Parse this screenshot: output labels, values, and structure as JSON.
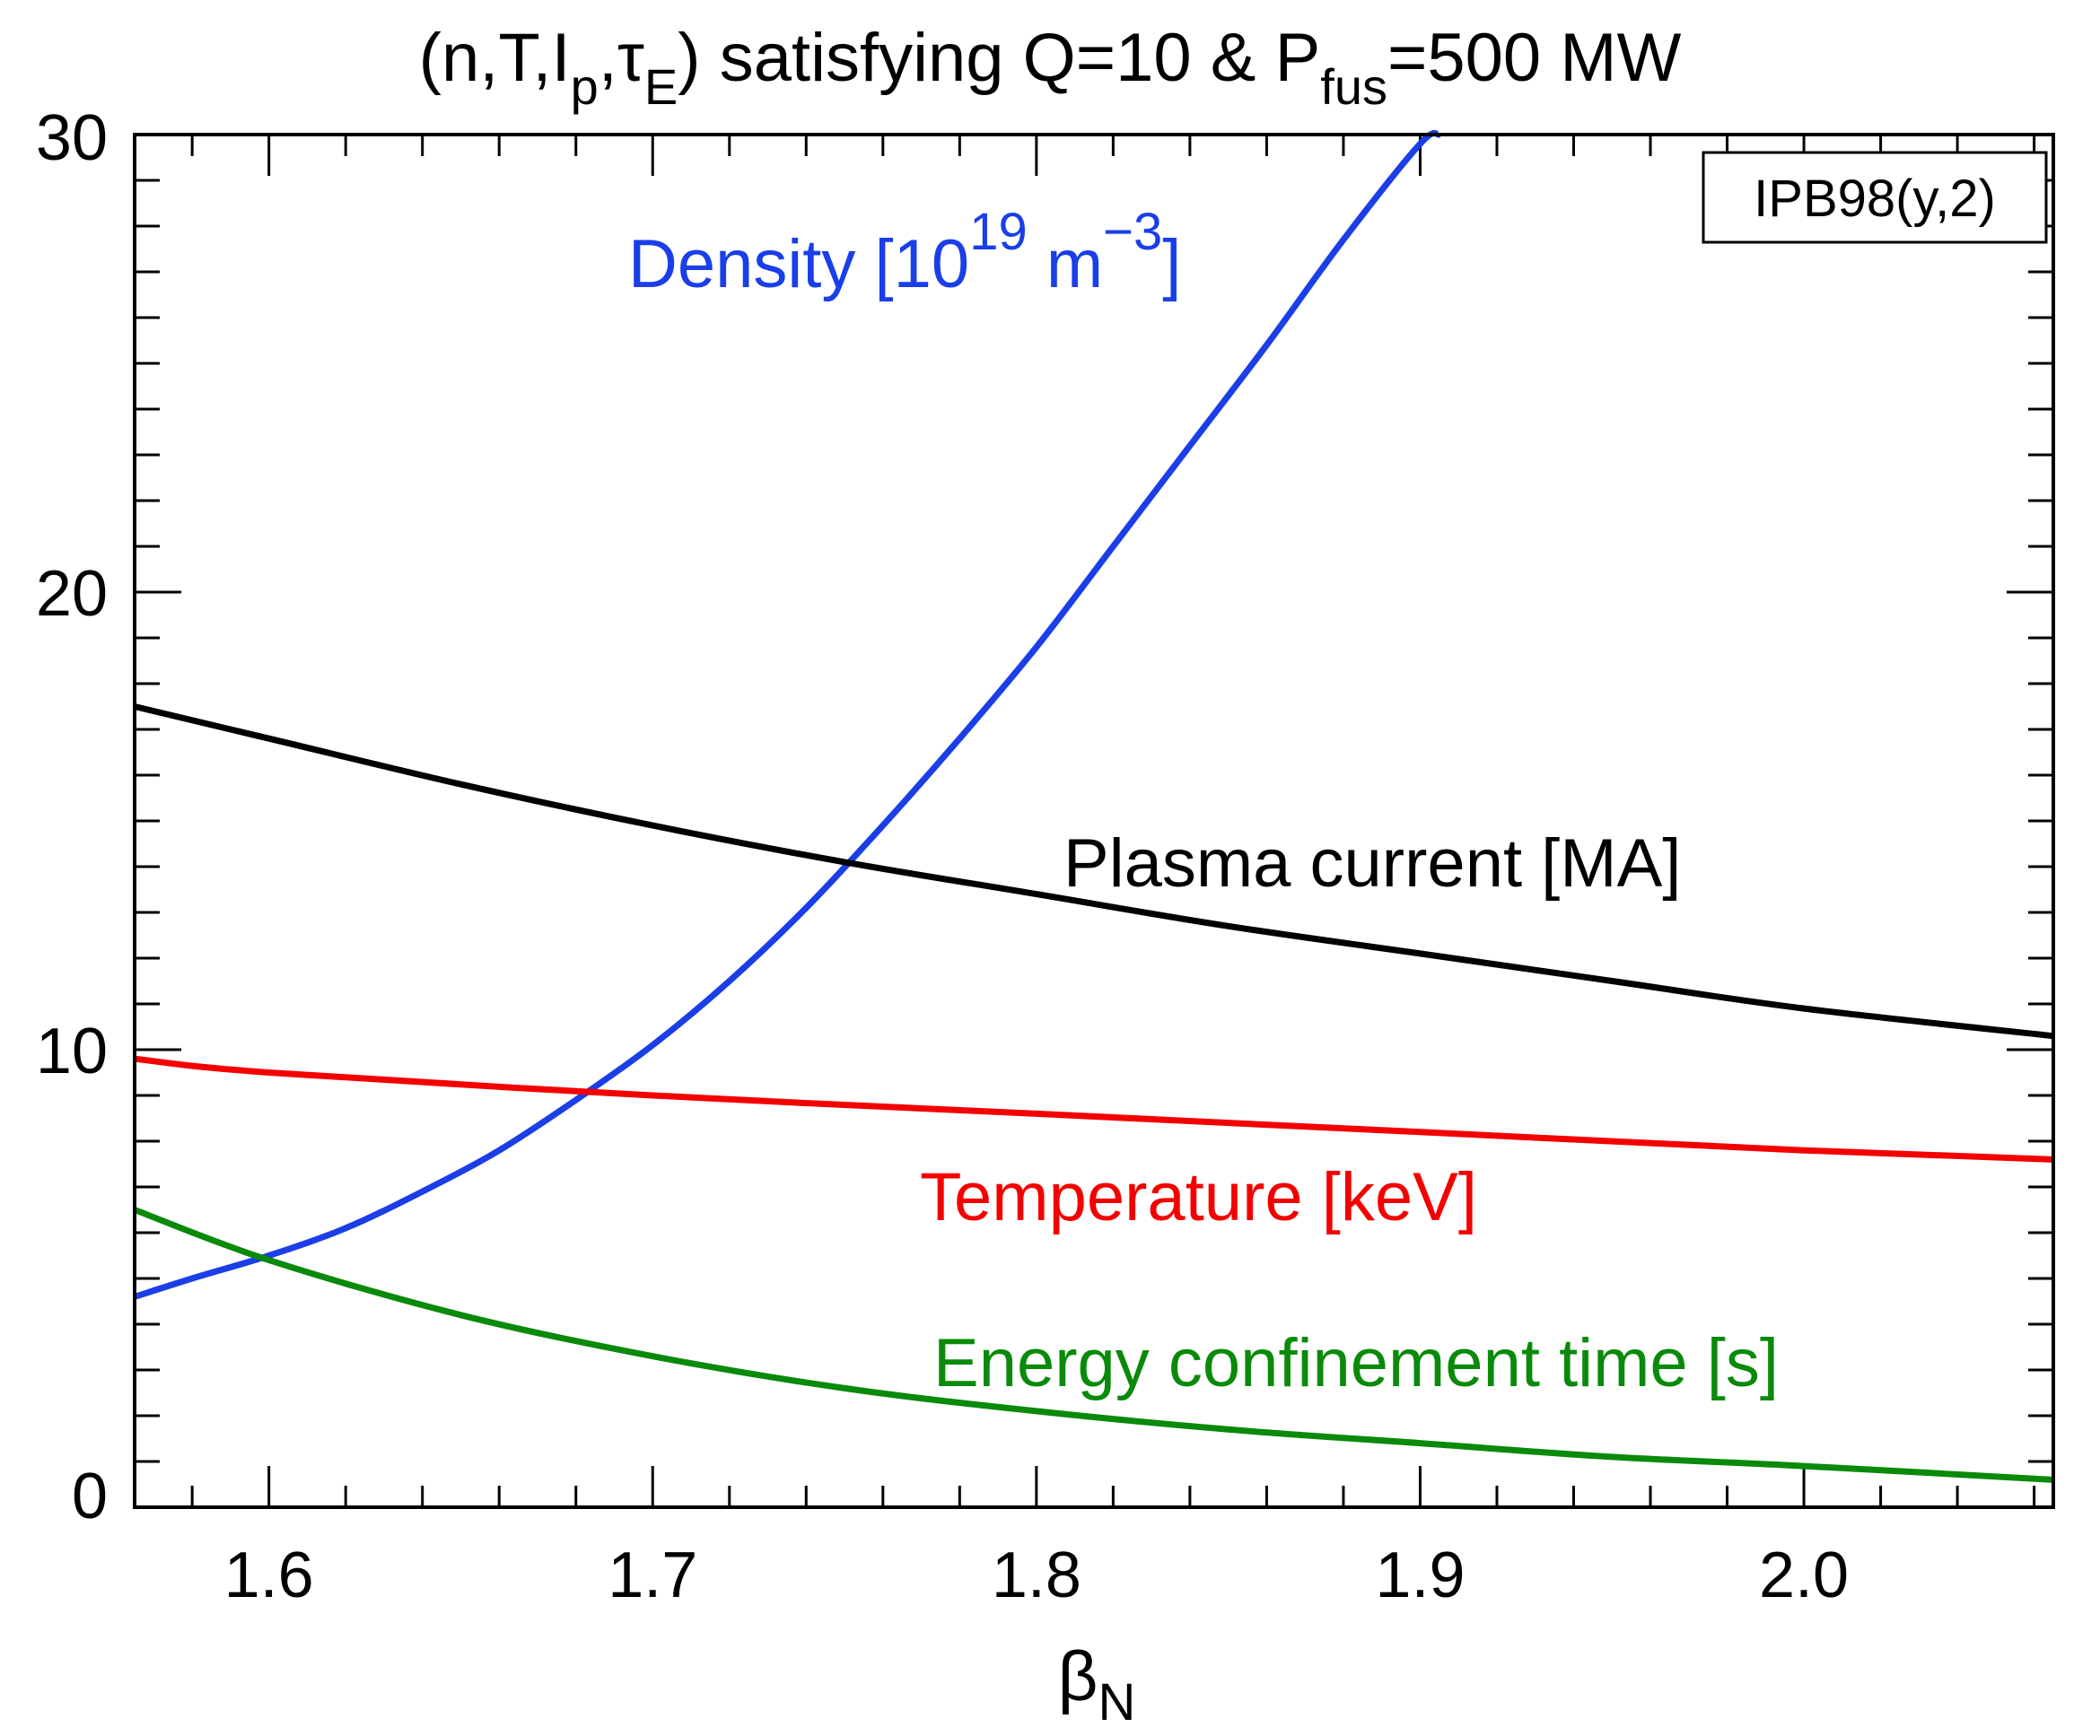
{
  "chart_data": {
    "type": "line",
    "title": {
      "prefix": "(n,T,I",
      "sub_p": "p",
      "comma": ",",
      "tau": "τ",
      "sub_E": "E",
      "middle": ") satisfying Q=10 & P",
      "sub_fus": "fus",
      "suffix": "=500 MW"
    },
    "xlabel": {
      "main": "β",
      "sub": "N"
    },
    "ylabel": "",
    "xlim": [
      1.565,
      2.065
    ],
    "ylim": [
      0,
      30
    ],
    "x_ticks": [
      1.6,
      1.7,
      1.8,
      1.9,
      2.0
    ],
    "x_tick_labels": [
      "1.6",
      "1.7",
      "1.8",
      "1.9",
      "2.0"
    ],
    "x_minor_step": 0.02,
    "y_ticks": [
      0,
      10,
      20,
      30
    ],
    "y_tick_labels": [
      "0",
      "10",
      "20",
      "30"
    ],
    "y_minor_step": 1,
    "grid": false,
    "annotation": "IPB98(y,2)",
    "series": [
      {
        "key": "density",
        "label_parts": {
          "main": "Density [10",
          "sup1": "19",
          "unit": " m",
          "sup2": "−3",
          "close": "]"
        },
        "color": "#1a3ee8",
        "x": [
          1.565,
          1.58,
          1.6,
          1.62,
          1.64,
          1.66,
          1.68,
          1.7,
          1.72,
          1.74,
          1.76,
          1.78,
          1.8,
          1.82,
          1.84,
          1.86,
          1.88,
          1.9,
          1.905
        ],
        "values": [
          4.6,
          5.0,
          5.5,
          6.1,
          6.9,
          7.8,
          8.9,
          10.1,
          11.5,
          13.1,
          14.9,
          16.8,
          18.8,
          21.0,
          23.2,
          25.4,
          27.7,
          29.8,
          30.0
        ]
      },
      {
        "key": "current",
        "label": "Plasma current [MA]",
        "color": "#000000",
        "x": [
          1.565,
          1.6,
          1.65,
          1.7,
          1.75,
          1.8,
          1.85,
          1.9,
          1.95,
          2.0,
          2.065
        ],
        "values": [
          17.5,
          16.8,
          15.8,
          14.9,
          14.1,
          13.4,
          12.7,
          12.1,
          11.5,
          10.9,
          10.3
        ]
      },
      {
        "key": "temperature",
        "label": "Temperature [keV]",
        "color": "#f40000",
        "x": [
          1.565,
          1.6,
          1.7,
          1.8,
          1.9,
          2.0,
          2.065
        ],
        "values": [
          9.8,
          9.5,
          9.0,
          8.6,
          8.2,
          7.8,
          7.6
        ]
      },
      {
        "key": "confinement",
        "label": "Energy confinement time [s]",
        "color": "#0a8a0a",
        "x": [
          1.565,
          1.6,
          1.65,
          1.7,
          1.75,
          1.8,
          1.85,
          1.9,
          1.95,
          2.0,
          2.065
        ],
        "values": [
          6.5,
          5.4,
          4.2,
          3.3,
          2.6,
          2.1,
          1.7,
          1.4,
          1.1,
          0.9,
          0.6
        ]
      }
    ]
  }
}
